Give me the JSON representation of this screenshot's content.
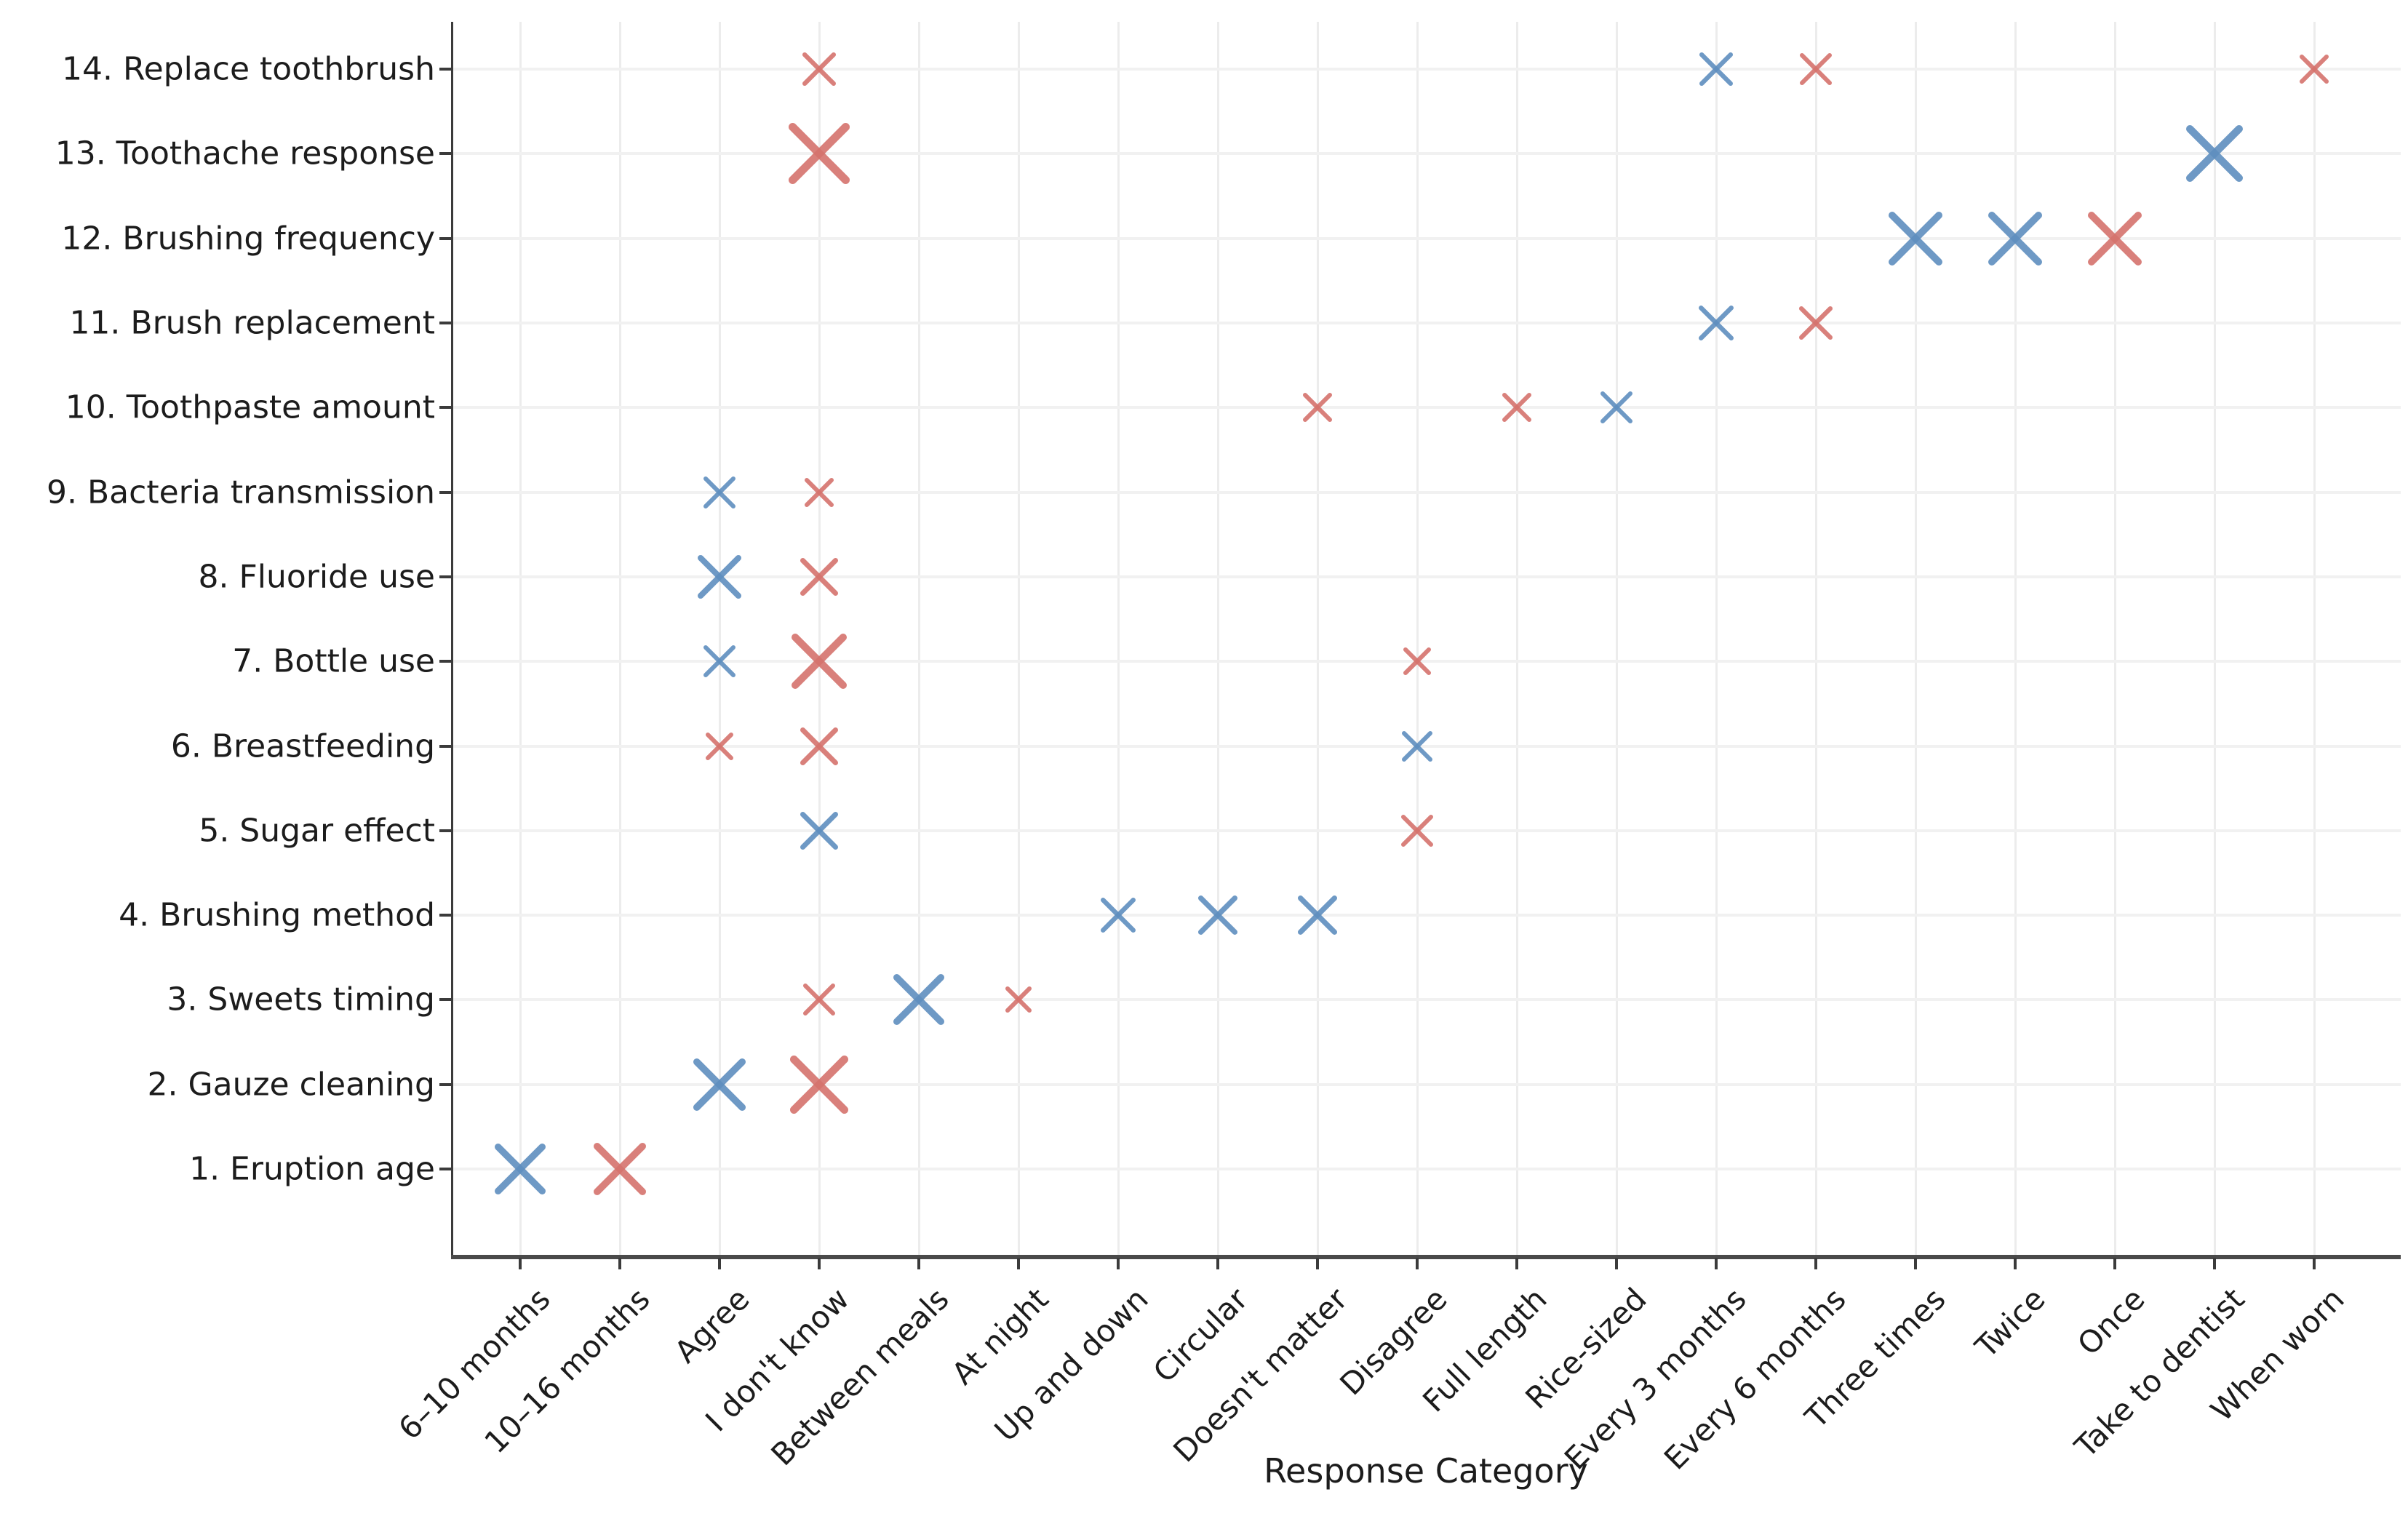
{
  "chart_data": {
    "type": "scatter",
    "marker_glyph": "x",
    "title": "",
    "xlabel": "Response Category",
    "ylabel": "",
    "grid": true,
    "legend": false,
    "x_categories": [
      "6–10 months",
      "10–16 months",
      "Agree",
      "I don't know",
      "Between meals",
      "At night",
      "Up and down",
      "Circular",
      "Doesn't matter",
      "Disagree",
      "Full length",
      "Rice-sized",
      "Every 3 months",
      "Every 6 months",
      "Three times",
      "Twice",
      "Once",
      "Take to dentist",
      "When worn"
    ],
    "y_categories": [
      "1. Eruption age",
      "2. Gauze cleaning",
      "3. Sweets timing",
      "4. Brushing method",
      "5. Sugar effect",
      "6. Breastfeeding",
      "7. Bottle use",
      "8. Fluoride use",
      "9. Bacteria transmission",
      "10. Toothpaste amount",
      "11. Brush replacement",
      "12. Brushing frequency",
      "13. Toothache response",
      "14. Replace toothbrush"
    ],
    "series": [
      {
        "name": "blue-group",
        "color": "#5f8fbf",
        "points": [
          {
            "x": "Every 3 months",
            "y": "14. Replace toothbrush",
            "size": 48
          },
          {
            "x": "Take to dentist",
            "y": "13. Toothache response",
            "size": 80
          },
          {
            "x": "Three times",
            "y": "12. Brushing frequency",
            "size": 76
          },
          {
            "x": "Twice",
            "y": "12. Brushing frequency",
            "size": 76
          },
          {
            "x": "Every 3 months",
            "y": "11. Brush replacement",
            "size": 50
          },
          {
            "x": "Rice-sized",
            "y": "10. Toothpaste amount",
            "size": 46
          },
          {
            "x": "Agree",
            "y": "9. Bacteria transmission",
            "size": 46
          },
          {
            "x": "Agree",
            "y": "8. Fluoride use",
            "size": 62
          },
          {
            "x": "Agree",
            "y": "7. Bottle use",
            "size": 46
          },
          {
            "x": "Disagree",
            "y": "6. Breastfeeding",
            "size": 44
          },
          {
            "x": "I don't know",
            "y": "5. Sugar effect",
            "size": 54
          },
          {
            "x": "Up and down",
            "y": "4. Brushing method",
            "size": 50
          },
          {
            "x": "Circular",
            "y": "4. Brushing method",
            "size": 56
          },
          {
            "x": "Doesn't matter",
            "y": "4. Brushing method",
            "size": 56
          },
          {
            "x": "Between meals",
            "y": "3. Sweets timing",
            "size": 72
          },
          {
            "x": "Agree",
            "y": "2. Gauze cleaning",
            "size": 74
          },
          {
            "x": "6–10 months",
            "y": "1. Eruption age",
            "size": 72
          }
        ]
      },
      {
        "name": "red-group",
        "color": "#d5736d",
        "points": [
          {
            "x": "I don't know",
            "y": "14. Replace toothbrush",
            "size": 48
          },
          {
            "x": "Every 6 months",
            "y": "14. Replace toothbrush",
            "size": 46
          },
          {
            "x": "When worn",
            "y": "14. Replace toothbrush",
            "size": 42
          },
          {
            "x": "I don't know",
            "y": "13. Toothache response",
            "size": 86
          },
          {
            "x": "Once",
            "y": "12. Brushing frequency",
            "size": 76
          },
          {
            "x": "Every 6 months",
            "y": "11. Brush replacement",
            "size": 48
          },
          {
            "x": "Doesn't matter",
            "y": "10. Toothpaste amount",
            "size": 42
          },
          {
            "x": "Full length",
            "y": "10. Toothpaste amount",
            "size": 42
          },
          {
            "x": "I don't know",
            "y": "9. Bacteria transmission",
            "size": 42
          },
          {
            "x": "I don't know",
            "y": "8. Fluoride use",
            "size": 54
          },
          {
            "x": "I don't know",
            "y": "7. Bottle use",
            "size": 78
          },
          {
            "x": "Disagree",
            "y": "7. Bottle use",
            "size": 40
          },
          {
            "x": "Agree",
            "y": "6. Breastfeeding",
            "size": 40
          },
          {
            "x": "I don't know",
            "y": "6. Breastfeeding",
            "size": 54
          },
          {
            "x": "Disagree",
            "y": "5. Sugar effect",
            "size": 46
          },
          {
            "x": "I don't know",
            "y": "3. Sweets timing",
            "size": 46
          },
          {
            "x": "At night",
            "y": "3. Sweets timing",
            "size": 38
          },
          {
            "x": "I don't know",
            "y": "2. Gauze cleaning",
            "size": 82
          },
          {
            "x": "10–16 months",
            "y": "1. Eruption age",
            "size": 74
          }
        ]
      }
    ]
  }
}
